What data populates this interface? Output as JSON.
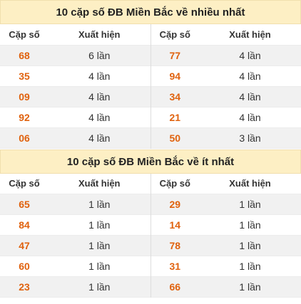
{
  "top": {
    "title": "10 cặp số ĐB Miền Bắc về nhiều nhất",
    "headers": [
      "Cặp số",
      "Xuất hiện",
      "Cặp số",
      "Xuất hiện"
    ],
    "rows": [
      {
        "a": "68",
        "ac": "6 lần",
        "b": "77",
        "bc": "4 lần"
      },
      {
        "a": "35",
        "ac": "4 lần",
        "b": "94",
        "bc": "4 lần"
      },
      {
        "a": "09",
        "ac": "4 lần",
        "b": "34",
        "bc": "4 lần"
      },
      {
        "a": "92",
        "ac": "4 lần",
        "b": "21",
        "bc": "4 lần"
      },
      {
        "a": "06",
        "ac": "4 lần",
        "b": "50",
        "bc": "3 lần"
      }
    ]
  },
  "bottom": {
    "title": "10 cặp số ĐB Miền Bắc về ít nhất",
    "headers": [
      "Cặp số",
      "Xuất hiện",
      "Cặp số",
      "Xuất hiện"
    ],
    "rows": [
      {
        "a": "65",
        "ac": "1 lần",
        "b": "29",
        "bc": "1 lần"
      },
      {
        "a": "84",
        "ac": "1 lần",
        "b": "14",
        "bc": "1 lần"
      },
      {
        "a": "47",
        "ac": "1 lần",
        "b": "78",
        "bc": "1 lần"
      },
      {
        "a": "60",
        "ac": "1 lần",
        "b": "31",
        "bc": "1 lần"
      },
      {
        "a": "23",
        "ac": "1 lần",
        "b": "66",
        "bc": "1 lần"
      }
    ]
  },
  "colors": {
    "accent": "#e0620e",
    "title_bg": "#fdefc4",
    "stripe": "#f1f1f1"
  }
}
